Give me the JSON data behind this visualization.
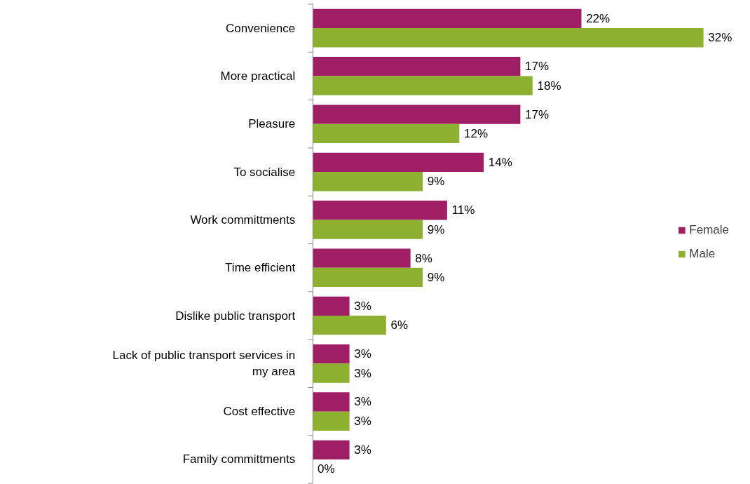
{
  "chart_data": {
    "type": "bar",
    "orientation": "horizontal",
    "legend": "right",
    "grid": false,
    "categories": [
      "Convenience",
      "More practical",
      "Pleasure",
      "To socialise",
      "Work committments",
      "Time efficient",
      "Dislike public transport",
      "Lack of public transport services in my area",
      "Cost effective",
      "Family committments"
    ],
    "series": [
      {
        "name": "Female",
        "color": "#9e1f63",
        "values": [
          22,
          17,
          17,
          14,
          11,
          8,
          3,
          3,
          3,
          3
        ],
        "value_labels": [
          "22%",
          "17%",
          "17%",
          "14%",
          "11%",
          "8%",
          "3%",
          "3%",
          "3%",
          "3%"
        ]
      },
      {
        "name": "Male",
        "color": "#8db030",
        "values": [
          32,
          18,
          12,
          9,
          9,
          9,
          6,
          3,
          3,
          0
        ],
        "value_labels": [
          "32%",
          "18%",
          "12%",
          "9%",
          "9%",
          "9%",
          "6%",
          "3%",
          "3%",
          "0%"
        ]
      }
    ]
  }
}
